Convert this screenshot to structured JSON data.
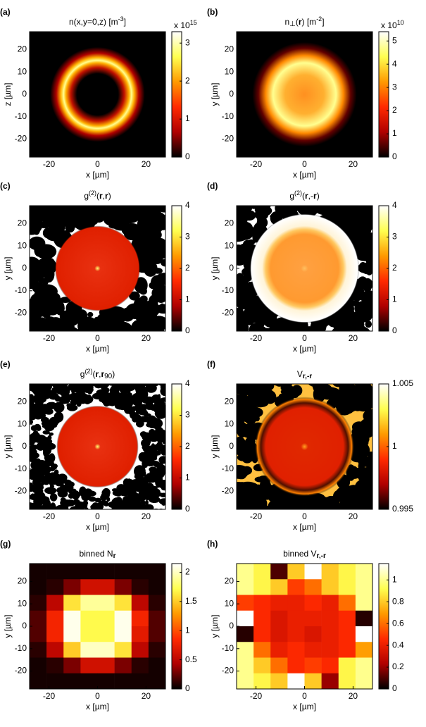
{
  "colormap": [
    "#000000",
    "#b00000",
    "#ff2a00",
    "#ff9a00",
    "#ffff50",
    "#ffffff"
  ],
  "chart_data": [
    {
      "type": "image",
      "panel": "(a)",
      "title": [
        {
          "t": "n(x,y=0,z)  [m"
        },
        {
          "t": "-3",
          "s": "sup"
        },
        {
          "t": "]"
        }
      ],
      "xlabel": "x  [µm]",
      "ylabel": "z  [µm]",
      "xlim": [
        -28,
        28
      ],
      "ylim": [
        -28,
        28
      ],
      "xticks": [
        -20,
        0,
        20
      ],
      "yticks": [
        -20,
        -10,
        0,
        10,
        20
      ],
      "zlim": [
        0,
        3.3
      ],
      "zticks": [
        0,
        1,
        2,
        3
      ],
      "exponent": [
        {
          "t": "x 10"
        },
        {
          "t": "15",
          "s": "sup"
        }
      ]
    },
    {
      "type": "image",
      "panel": "(b)",
      "title": [
        {
          "t": "n"
        },
        {
          "t": "⊥",
          "s": "sub"
        },
        {
          "t": "("
        },
        {
          "t": "r",
          "s": "b"
        },
        {
          "t": ")  [m"
        },
        {
          "t": "-2",
          "s": "sup"
        },
        {
          "t": "]"
        }
      ],
      "xlabel": "x  [µm]",
      "ylabel": "y  [µm]",
      "xlim": [
        -28,
        28
      ],
      "ylim": [
        -28,
        28
      ],
      "xticks": [
        -20,
        0,
        20
      ],
      "yticks": [
        -20,
        -10,
        0,
        10,
        20
      ],
      "zlim": [
        0,
        5.4
      ],
      "zticks": [
        0,
        1,
        2,
        3,
        4,
        5
      ],
      "exponent": [
        {
          "t": "x 10"
        },
        {
          "t": "10",
          "s": "sup"
        }
      ]
    },
    {
      "type": "image",
      "panel": "(c)",
      "title": [
        {
          "t": "g"
        },
        {
          "t": "(2)",
          "s": "sup"
        },
        {
          "t": "("
        },
        {
          "t": "r",
          "s": "b"
        },
        {
          "t": ","
        },
        {
          "t": "r",
          "s": "b"
        },
        {
          "t": ")"
        }
      ],
      "xlabel": "x  [µm]",
      "ylabel": "y  [µm]",
      "xlim": [
        -28,
        28
      ],
      "ylim": [
        -28,
        28
      ],
      "xticks": [
        -20,
        0,
        20
      ],
      "yticks": [
        -20,
        -10,
        0,
        10,
        20
      ],
      "zlim": [
        0,
        4
      ],
      "zticks": [
        0,
        1,
        2,
        3,
        4
      ]
    },
    {
      "type": "image",
      "panel": "(d)",
      "title": [
        {
          "t": "g"
        },
        {
          "t": "(2)",
          "s": "sup"
        },
        {
          "t": "("
        },
        {
          "t": "r",
          "s": "b"
        },
        {
          "t": ",-"
        },
        {
          "t": "r",
          "s": "b"
        },
        {
          "t": ")"
        }
      ],
      "xlabel": "x  [µm]",
      "ylabel": "y  [µm]",
      "xlim": [
        -28,
        28
      ],
      "ylim": [
        -28,
        28
      ],
      "xticks": [
        -20,
        0,
        20
      ],
      "yticks": [
        -20,
        -10,
        0,
        10,
        20
      ],
      "zlim": [
        0,
        4
      ],
      "zticks": [
        0,
        1,
        2,
        3,
        4
      ]
    },
    {
      "type": "image",
      "panel": "(e)",
      "title": [
        {
          "t": "g"
        },
        {
          "t": "(2)",
          "s": "sup"
        },
        {
          "t": "("
        },
        {
          "t": "r",
          "s": "b"
        },
        {
          "t": ","
        },
        {
          "t": "r",
          "s": "b"
        },
        {
          "t": "90",
          "s": "sub"
        },
        {
          "t": ")"
        }
      ],
      "xlabel": "x  [µm]",
      "ylabel": "y  [µm]",
      "xlim": [
        -28,
        28
      ],
      "ylim": [
        -28,
        28
      ],
      "xticks": [
        -20,
        0,
        20
      ],
      "yticks": [
        -20,
        -10,
        0,
        10,
        20
      ],
      "zlim": [
        0,
        4
      ],
      "zticks": [
        0,
        1,
        2,
        3,
        4
      ]
    },
    {
      "type": "image",
      "panel": "(f)",
      "title": [
        {
          "t": "V"
        },
        {
          "t": "r,-r",
          "s": "subb"
        }
      ],
      "xlabel": "x  [µm]",
      "ylabel": "y  [µm]",
      "xlim": [
        -28,
        28
      ],
      "ylim": [
        -28,
        28
      ],
      "xticks": [
        -20,
        0,
        20
      ],
      "yticks": [
        -20,
        -10,
        0,
        10,
        20
      ],
      "zlim": [
        0.995,
        1.005
      ],
      "zticks": [
        0.995,
        1,
        1.005
      ]
    },
    {
      "type": "heatmap",
      "panel": "(g)",
      "title": [
        {
          "t": "binned  N"
        },
        {
          "t": "r",
          "s": "subb"
        }
      ],
      "xlabel": "x  [µm]",
      "ylabel": "y  [µm]",
      "xlim": [
        -28,
        28
      ],
      "ylim": [
        -28,
        28
      ],
      "xticks": [
        -20,
        0,
        20
      ],
      "yticks": [
        -20,
        -10,
        0,
        10,
        20
      ],
      "zlim": [
        0,
        2.15
      ],
      "zticks": [
        0,
        0.5,
        1,
        1.5,
        2
      ],
      "x": [
        -24.5,
        -17.5,
        -10.5,
        -3.5,
        3.5,
        10.5,
        17.5,
        24.5
      ],
      "y": [
        24.5,
        17.5,
        10.5,
        3.5,
        -3.5,
        -10.5,
        -17.5,
        -24.5
      ],
      "z": [
        [
          0.05,
          0.05,
          0.05,
          0.05,
          0.05,
          0.05,
          0.05,
          0.05
        ],
        [
          0.05,
          0.1,
          0.3,
          0.6,
          0.6,
          0.3,
          0.1,
          0.05
        ],
        [
          0.1,
          0.5,
          1.6,
          1.9,
          1.9,
          1.6,
          0.5,
          0.1
        ],
        [
          0.2,
          0.8,
          2.1,
          1.7,
          1.7,
          2.1,
          0.8,
          0.2
        ],
        [
          0.2,
          0.8,
          2.1,
          1.7,
          1.7,
          2.1,
          0.7,
          0.2
        ],
        [
          0.1,
          0.5,
          1.5,
          2.0,
          2.0,
          1.6,
          0.5,
          0.1
        ],
        [
          0.05,
          0.1,
          0.3,
          0.6,
          0.6,
          0.3,
          0.1,
          0.05
        ],
        [
          0.05,
          0.05,
          0.05,
          0.05,
          0.05,
          0.05,
          0.05,
          0.05
        ]
      ]
    },
    {
      "type": "heatmap",
      "panel": "(h)",
      "title": [
        {
          "t": "binned  V"
        },
        {
          "t": "r,-r",
          "s": "subb"
        }
      ],
      "xlabel": "x  [µm]",
      "ylabel": "y  [µm]",
      "xlim": [
        -28,
        28
      ],
      "ylim": [
        -28,
        28
      ],
      "xticks": [
        -20,
        0,
        20
      ],
      "yticks": [
        -20,
        -10,
        0,
        10,
        20
      ],
      "zlim": [
        0,
        1.15
      ],
      "zticks": [
        0,
        0.2,
        0.4,
        0.6,
        0.8,
        1
      ],
      "x": [
        -24.5,
        -17.5,
        -10.5,
        -3.5,
        3.5,
        10.5,
        17.5,
        24.5
      ],
      "y": [
        24.5,
        17.5,
        10.5,
        3.5,
        -3.5,
        -10.5,
        -17.5,
        -24.5
      ],
      "z": [
        [
          1.0,
          0.9,
          0.1,
          0.8,
          1.15,
          0.8,
          0.9,
          1.0
        ],
        [
          1.0,
          0.9,
          0.8,
          0.5,
          0.6,
          0.8,
          0.9,
          1.0
        ],
        [
          0.5,
          0.45,
          0.4,
          0.4,
          0.45,
          0.4,
          0.6,
          1.0
        ],
        [
          1.15,
          0.45,
          0.35,
          0.4,
          0.4,
          0.4,
          0.45,
          0.05
        ],
        [
          0.05,
          0.45,
          0.35,
          0.4,
          0.35,
          0.4,
          0.45,
          1.15
        ],
        [
          1.0,
          0.6,
          0.4,
          0.45,
          0.4,
          0.4,
          0.45,
          0.7
        ],
        [
          1.0,
          0.8,
          0.6,
          0.45,
          0.5,
          0.45,
          0.9,
          1.0
        ],
        [
          1.0,
          0.9,
          0.8,
          1.15,
          0.8,
          0.2,
          0.9,
          1.0
        ]
      ]
    }
  ]
}
